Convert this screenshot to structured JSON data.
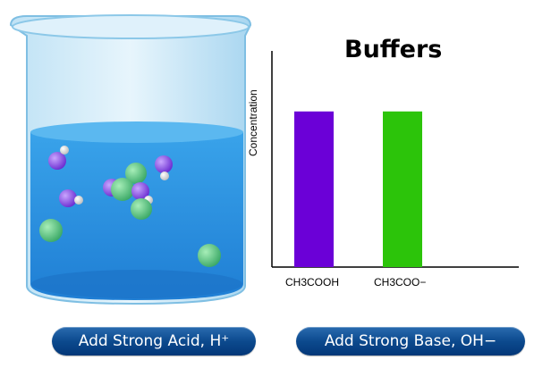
{
  "chart_data": {
    "type": "bar",
    "title": "Buffers",
    "ylabel": "Concentration",
    "xlabel": "",
    "categories": [
      "CH3COOH",
      "CH3COO−"
    ],
    "values": [
      0.72,
      0.72
    ],
    "ylim": [
      0,
      1
    ],
    "colors": [
      "#6b00d7",
      "#2cc40a"
    ],
    "grid": false
  },
  "buttons": {
    "acid_label": "Add Strong Acid, H⁺",
    "base_label": "Add Strong Base, OH−"
  },
  "colors": {
    "water": "#2f8ee0",
    "button": "#0c4a8e"
  },
  "icons": [
    "beaker-icon",
    "molecule-icon"
  ]
}
